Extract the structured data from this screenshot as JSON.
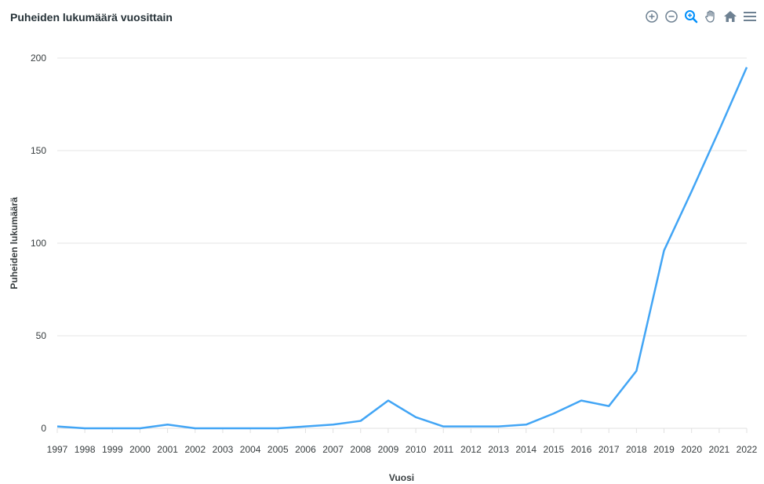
{
  "toolbar": {
    "icons": [
      "zoom-in-icon",
      "zoom-out-icon",
      "selection-zoom-icon",
      "pan-icon",
      "reset-home-icon",
      "menu-icon"
    ],
    "active_color": "#008ffb",
    "inactive_color": "#6e8192"
  },
  "chart_data": {
    "type": "line",
    "title": "Puheiden lukumäärä vuosittain",
    "xlabel": "Vuosi",
    "ylabel": "Puheiden lukumäärä",
    "categories": [
      "1997",
      "1998",
      "1999",
      "2000",
      "2001",
      "2002",
      "2003",
      "2004",
      "2005",
      "2006",
      "2007",
      "2008",
      "2009",
      "2010",
      "2011",
      "2012",
      "2013",
      "2014",
      "2015",
      "2016",
      "2017",
      "2018",
      "2019",
      "2020",
      "2021",
      "2022"
    ],
    "series": [
      {
        "values": [
          1,
          0,
          0,
          0,
          2,
          0,
          0,
          0,
          0,
          1,
          2,
          4,
          15,
          6,
          1,
          1,
          1,
          2,
          8,
          15,
          12,
          31,
          96,
          128,
          161,
          195
        ]
      }
    ],
    "ylim": [
      0,
      200
    ],
    "yticks": [
      0,
      50,
      100,
      150,
      200
    ],
    "grid": true,
    "line_color": "#42a5f5"
  }
}
